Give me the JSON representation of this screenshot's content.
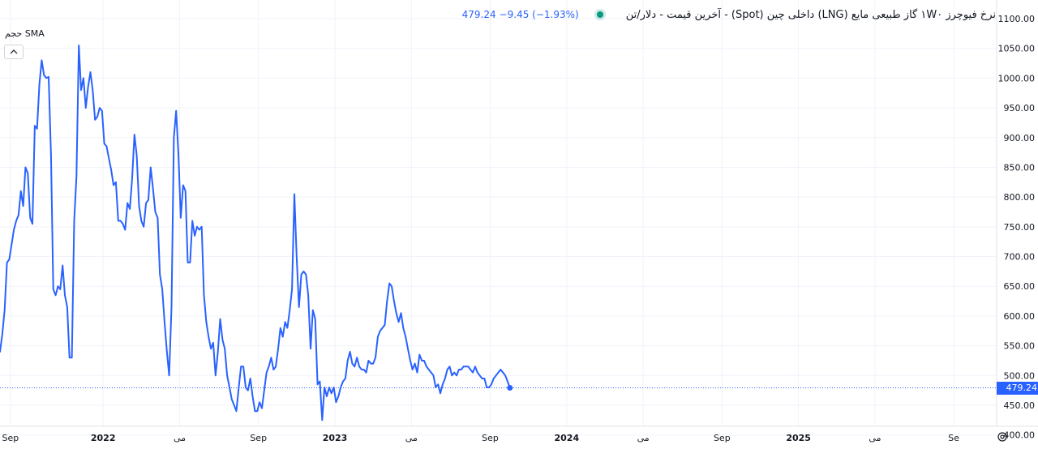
{
  "legend": {
    "title": "نرخ فیوچرز ۱W۰ گاز طبیعی مایع (LNG) داخلی چین (Spot) - آخرین قیمت - دلار/تن",
    "change": "−9.45 (−1.93%)",
    "last": "479.24",
    "sub": "حجم SMA"
  },
  "price_tag": "479.24",
  "colors": {
    "line": "#2962ff",
    "grid": "#f0f3fa",
    "axis_text": "#131722",
    "status": "#089981"
  },
  "chart_data": {
    "type": "line",
    "title": "نرخ فیوچرز ۱W۰ گاز طبیعی مایع (LNG) داخلی چین (Spot) - آخرین قیمت - دلار/تن",
    "y_ticks": [
      "1100.00",
      "1050.00",
      "1000.00",
      "950.00",
      "900.00",
      "850.00",
      "800.00",
      "750.00",
      "700.00",
      "650.00",
      "600.00",
      "550.00",
      "500.00",
      "450.00",
      "400.00"
    ],
    "ylim": [
      380,
      1110
    ],
    "x_ticks": [
      {
        "label": "Sep",
        "x": 21.6,
        "bold": false
      },
      {
        "label": "2022",
        "x": 22.0,
        "bold": true
      },
      {
        "label": "می",
        "x": 22.33,
        "bold": false
      },
      {
        "label": "Sep",
        "x": 22.67,
        "bold": false
      },
      {
        "label": "2023",
        "x": 23.0,
        "bold": true
      },
      {
        "label": "می",
        "x": 23.33,
        "bold": false
      },
      {
        "label": "Sep",
        "x": 23.67,
        "bold": false
      },
      {
        "label": "2024",
        "x": 24.0,
        "bold": true
      },
      {
        "label": "می",
        "x": 24.33,
        "bold": false
      },
      {
        "label": "Sep",
        "x": 24.67,
        "bold": false
      },
      {
        "label": "2025",
        "x": 25.0,
        "bold": true
      },
      {
        "label": "می",
        "x": 25.33,
        "bold": false
      },
      {
        "label": "Se",
        "x": 25.67,
        "bold": false
      }
    ],
    "xlim": [
      21.555,
      25.855
    ],
    "last_value": 479.24,
    "series": [
      {
        "values": [
          [
            21.555,
            540
          ],
          [
            21.565,
            570
          ],
          [
            21.575,
            610
          ],
          [
            21.585,
            690
          ],
          [
            21.595,
            695
          ],
          [
            21.605,
            720
          ],
          [
            21.615,
            745
          ],
          [
            21.625,
            760
          ],
          [
            21.635,
            770
          ],
          [
            21.645,
            810
          ],
          [
            21.655,
            785
          ],
          [
            21.665,
            850
          ],
          [
            21.675,
            840
          ],
          [
            21.685,
            765
          ],
          [
            21.695,
            755
          ],
          [
            21.705,
            920
          ],
          [
            21.715,
            915
          ],
          [
            21.725,
            990
          ],
          [
            21.735,
            1030
          ],
          [
            21.745,
            1005
          ],
          [
            21.755,
            1000
          ],
          [
            21.765,
            1002
          ],
          [
            21.775,
            870
          ],
          [
            21.785,
            645
          ],
          [
            21.795,
            635
          ],
          [
            21.805,
            650
          ],
          [
            21.815,
            645
          ],
          [
            21.825,
            685
          ],
          [
            21.835,
            635
          ],
          [
            21.845,
            615
          ],
          [
            21.855,
            530
          ],
          [
            21.865,
            530
          ],
          [
            21.875,
            760
          ],
          [
            21.885,
            835
          ],
          [
            21.895,
            1055
          ],
          [
            21.905,
            980
          ],
          [
            21.915,
            1000
          ],
          [
            21.925,
            950
          ],
          [
            21.935,
            985
          ],
          [
            21.945,
            1010
          ],
          [
            21.955,
            980
          ],
          [
            21.965,
            930
          ],
          [
            21.975,
            935
          ],
          [
            21.985,
            950
          ],
          [
            21.995,
            945
          ],
          [
            22.005,
            890
          ],
          [
            22.015,
            885
          ],
          [
            22.025,
            865
          ],
          [
            22.035,
            845
          ],
          [
            22.045,
            820
          ],
          [
            22.055,
            825
          ],
          [
            22.065,
            760
          ],
          [
            22.075,
            760
          ],
          [
            22.085,
            755
          ],
          [
            22.095,
            745
          ],
          [
            22.105,
            790
          ],
          [
            22.115,
            780
          ],
          [
            22.125,
            830
          ],
          [
            22.135,
            905
          ],
          [
            22.145,
            870
          ],
          [
            22.155,
            785
          ],
          [
            22.165,
            760
          ],
          [
            22.175,
            750
          ],
          [
            22.185,
            790
          ],
          [
            22.195,
            795
          ],
          [
            22.205,
            850
          ],
          [
            22.215,
            815
          ],
          [
            22.225,
            775
          ],
          [
            22.235,
            765
          ],
          [
            22.245,
            670
          ],
          [
            22.255,
            645
          ],
          [
            22.265,
            590
          ],
          [
            22.275,
            540
          ],
          [
            22.285,
            500
          ],
          [
            22.295,
            615
          ],
          [
            22.305,
            900
          ],
          [
            22.315,
            945
          ],
          [
            22.325,
            870
          ],
          [
            22.335,
            765
          ],
          [
            22.345,
            820
          ],
          [
            22.355,
            810
          ],
          [
            22.365,
            690
          ],
          [
            22.375,
            690
          ],
          [
            22.385,
            760
          ],
          [
            22.395,
            735
          ],
          [
            22.405,
            750
          ],
          [
            22.415,
            745
          ],
          [
            22.425,
            750
          ],
          [
            22.435,
            635
          ],
          [
            22.445,
            590
          ],
          [
            22.455,
            565
          ],
          [
            22.465,
            545
          ],
          [
            22.475,
            555
          ],
          [
            22.485,
            500
          ],
          [
            22.495,
            540
          ],
          [
            22.505,
            595
          ],
          [
            22.515,
            560
          ],
          [
            22.525,
            545
          ],
          [
            22.535,
            500
          ],
          [
            22.545,
            480
          ],
          [
            22.555,
            460
          ],
          [
            22.565,
            450
          ],
          [
            22.575,
            440
          ],
          [
            22.585,
            480
          ],
          [
            22.595,
            515
          ],
          [
            22.605,
            515
          ],
          [
            22.615,
            480
          ],
          [
            22.625,
            475
          ],
          [
            22.635,
            495
          ],
          [
            22.645,
            465
          ],
          [
            22.655,
            440
          ],
          [
            22.665,
            440
          ],
          [
            22.675,
            455
          ],
          [
            22.685,
            445
          ],
          [
            22.695,
            475
          ],
          [
            22.705,
            505
          ],
          [
            22.715,
            515
          ],
          [
            22.725,
            530
          ],
          [
            22.735,
            510
          ],
          [
            22.745,
            515
          ],
          [
            22.755,
            545
          ],
          [
            22.765,
            580
          ],
          [
            22.775,
            565
          ],
          [
            22.785,
            590
          ],
          [
            22.795,
            580
          ],
          [
            22.805,
            610
          ],
          [
            22.815,
            645
          ],
          [
            22.825,
            805
          ],
          [
            22.835,
            700
          ],
          [
            22.845,
            615
          ],
          [
            22.855,
            670
          ],
          [
            22.865,
            675
          ],
          [
            22.875,
            670
          ],
          [
            22.885,
            635
          ],
          [
            22.895,
            545
          ],
          [
            22.905,
            610
          ],
          [
            22.915,
            595
          ],
          [
            22.925,
            485
          ],
          [
            22.935,
            490
          ],
          [
            22.945,
            425
          ],
          [
            22.955,
            480
          ],
          [
            22.965,
            465
          ],
          [
            22.975,
            480
          ],
          [
            22.985,
            470
          ],
          [
            22.995,
            480
          ],
          [
            23.005,
            455
          ],
          [
            23.015,
            465
          ],
          [
            23.025,
            480
          ],
          [
            23.035,
            490
          ],
          [
            23.045,
            495
          ],
          [
            23.055,
            525
          ],
          [
            23.065,
            540
          ],
          [
            23.075,
            520
          ],
          [
            23.085,
            515
          ],
          [
            23.095,
            530
          ],
          [
            23.105,
            515
          ],
          [
            23.115,
            510
          ],
          [
            23.125,
            510
          ],
          [
            23.135,
            505
          ],
          [
            23.145,
            525
          ],
          [
            23.155,
            520
          ],
          [
            23.165,
            520
          ],
          [
            23.175,
            530
          ],
          [
            23.185,
            565
          ],
          [
            23.195,
            575
          ],
          [
            23.205,
            580
          ],
          [
            23.215,
            585
          ],
          [
            23.225,
            625
          ],
          [
            23.235,
            655
          ],
          [
            23.245,
            650
          ],
          [
            23.255,
            625
          ],
          [
            23.265,
            605
          ],
          [
            23.275,
            590
          ],
          [
            23.285,
            605
          ],
          [
            23.295,
            580
          ],
          [
            23.305,
            565
          ],
          [
            23.315,
            545
          ],
          [
            23.325,
            525
          ],
          [
            23.335,
            510
          ],
          [
            23.345,
            520
          ],
          [
            23.355,
            505
          ],
          [
            23.365,
            535
          ],
          [
            23.375,
            525
          ],
          [
            23.385,
            525
          ],
          [
            23.395,
            515
          ],
          [
            23.405,
            510
          ],
          [
            23.415,
            505
          ],
          [
            23.425,
            500
          ],
          [
            23.435,
            480
          ],
          [
            23.445,
            485
          ],
          [
            23.455,
            470
          ],
          [
            23.465,
            485
          ],
          [
            23.475,
            495
          ],
          [
            23.485,
            510
          ],
          [
            23.495,
            515
          ],
          [
            23.505,
            500
          ],
          [
            23.515,
            505
          ],
          [
            23.525,
            500
          ],
          [
            23.535,
            510
          ],
          [
            23.545,
            510
          ],
          [
            23.555,
            515
          ],
          [
            23.565,
            515
          ],
          [
            23.575,
            515
          ],
          [
            23.585,
            510
          ],
          [
            23.595,
            505
          ],
          [
            23.605,
            515
          ],
          [
            23.615,
            505
          ],
          [
            23.625,
            500
          ],
          [
            23.635,
            495
          ],
          [
            23.645,
            495
          ],
          [
            23.655,
            480
          ],
          [
            23.665,
            480
          ],
          [
            23.675,
            485
          ],
          [
            23.685,
            495
          ],
          [
            23.695,
            500
          ],
          [
            23.705,
            505
          ],
          [
            23.715,
            510
          ],
          [
            23.725,
            505
          ],
          [
            23.735,
            500
          ],
          [
            23.745,
            490
          ],
          [
            23.755,
            479.24
          ]
        ]
      }
    ]
  }
}
